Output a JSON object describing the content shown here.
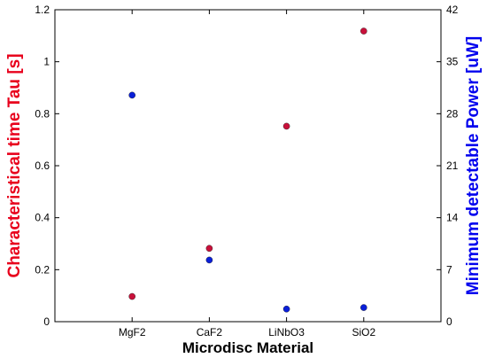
{
  "chart_data": {
    "type": "scatter",
    "xlabel": "Microdisc Material",
    "ylabel_left": "Characteristical time Tau [s]",
    "ylabel_right": "Minimum detectable Power [uW]",
    "categories": [
      "MgF2",
      "CaF2",
      "LiNbO3",
      "SiO2"
    ],
    "left_axis": {
      "range": [
        0,
        1.2
      ],
      "ticks": [
        0,
        0.2,
        0.4,
        0.6,
        0.8,
        1,
        1.2
      ],
      "tick_labels": [
        "0",
        "0.2",
        "0.4",
        "0.6",
        "0.8",
        "1",
        "1.2"
      ],
      "color": "#e8001c"
    },
    "right_axis": {
      "range": [
        0,
        42
      ],
      "ticks": [
        0,
        7,
        14,
        21,
        28,
        35,
        42
      ],
      "tick_labels": [
        "0",
        "7",
        "14",
        "21",
        "28",
        "35",
        "42"
      ],
      "color": "#0000ee"
    },
    "series": [
      {
        "axis": "left",
        "color": "#c8103a",
        "values": [
          0.097,
          0.282,
          0.752,
          1.118
        ]
      },
      {
        "axis": "right",
        "color": "#0a1fd8",
        "values": [
          30.5,
          8.3,
          1.7,
          1.9
        ]
      }
    ],
    "grid": false,
    "legend": "none"
  }
}
